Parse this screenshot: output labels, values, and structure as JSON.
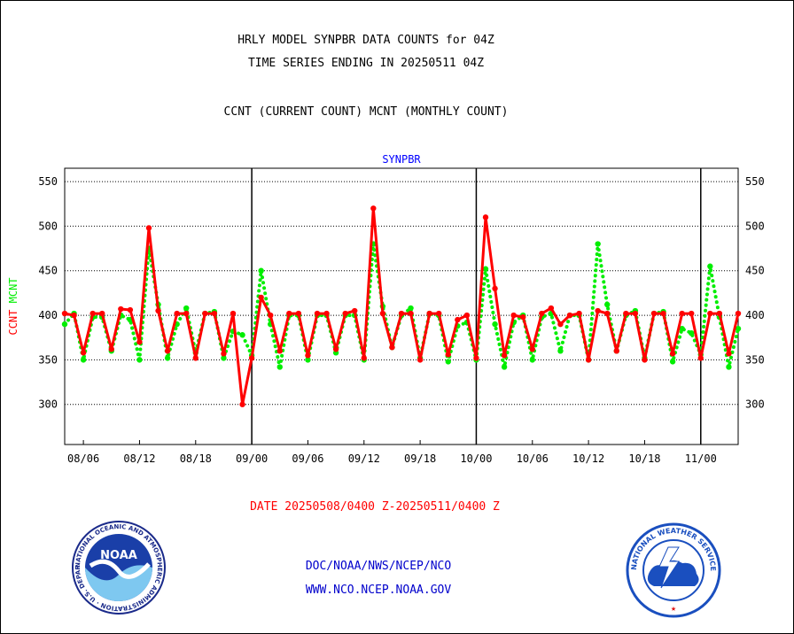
{
  "header": {
    "title_line1": "HRLY MODEL SYNPBR DATA COUNTS for 04Z",
    "title_line2": "TIME SERIES ENDING IN 20250511 04Z",
    "subtitle": "CCNT (CURRENT COUNT) MCNT (MONTHLY COUNT)"
  },
  "footer": {
    "date_range": "DATE 20250508/0400 Z-20250511/0400 Z",
    "org_path": "DOC/NOAA/NWS/NCEP/NCO",
    "website": "WWW.NCO.NCEP.NOAA.GOV"
  },
  "logos": {
    "noaa_text": "NOAA",
    "noaa_ring": "NATIONAL OCEANIC AND ATMOSPHERIC ADMINISTRATION · U.S. DEPARTMENT OF COMMERCE",
    "nws_ring": "NATIONAL WEATHER SERVICE"
  },
  "colors": {
    "ccnt": "#ff0000",
    "mcnt": "#00ee00",
    "plot_title": "#0000ff",
    "date_text": "#ff0000",
    "footer_text": "#0000cc"
  },
  "chart_data": {
    "type": "line",
    "title": "SYNPBR",
    "ylabel_parts": [
      {
        "text": "CCNT",
        "series": "CCNT"
      },
      {
        "text": "MCNT",
        "series": "MCNT"
      }
    ],
    "ylim": [
      255,
      565
    ],
    "yticks": [
      300,
      350,
      400,
      450,
      500,
      550
    ],
    "grid": "horizontal dotted",
    "xlim": [
      0,
      72
    ],
    "x_tick_labels": [
      {
        "x": 2,
        "label": "08/06"
      },
      {
        "x": 8,
        "label": "08/12"
      },
      {
        "x": 14,
        "label": "08/18"
      },
      {
        "x": 20,
        "label": "09/00"
      },
      {
        "x": 26,
        "label": "09/06"
      },
      {
        "x": 32,
        "label": "09/12"
      },
      {
        "x": 38,
        "label": "09/18"
      },
      {
        "x": 44,
        "label": "10/00"
      },
      {
        "x": 50,
        "label": "10/06"
      },
      {
        "x": 56,
        "label": "10/12"
      },
      {
        "x": 62,
        "label": "10/18"
      },
      {
        "x": 68,
        "label": "11/00"
      }
    ],
    "day_boundaries": [
      20,
      44,
      68
    ],
    "series": [
      {
        "name": "CCNT",
        "style": "solid",
        "x": [
          0,
          1,
          2,
          3,
          4,
          5,
          6,
          7,
          8,
          9,
          10,
          11,
          12,
          13,
          14,
          15,
          16,
          17,
          18,
          19,
          20,
          21,
          22,
          23,
          24,
          25,
          26,
          27,
          28,
          29,
          30,
          31,
          32,
          33,
          34,
          35,
          36,
          37,
          38,
          39,
          40,
          41,
          42,
          43,
          44,
          45,
          46,
          47,
          48,
          49,
          50,
          51,
          52,
          53,
          54,
          55,
          56,
          57,
          58,
          59,
          60,
          61,
          62,
          63,
          64,
          65,
          66,
          67,
          68,
          69,
          70,
          71,
          72
        ],
        "values": [
          402,
          400,
          358,
          402,
          402,
          362,
          407,
          406,
          370,
          498,
          405,
          360,
          402,
          402,
          352,
          402,
          402,
          357,
          402,
          300,
          352,
          420,
          400,
          360,
          402,
          402,
          355,
          402,
          402,
          362,
          402,
          405,
          352,
          520,
          402,
          364,
          402,
          402,
          350,
          402,
          402,
          356,
          395,
          400,
          352,
          510,
          430,
          355,
          400,
          398,
          362,
          402,
          408,
          390,
          400,
          402,
          350,
          405,
          402,
          360,
          402,
          402,
          350,
          402,
          402,
          357,
          402,
          402,
          352,
          402,
          402,
          357,
          402
        ]
      },
      {
        "name": "MCNT",
        "style": "dotted",
        "x": [
          0,
          1,
          2,
          3,
          4,
          5,
          6,
          7,
          8,
          9,
          10,
          11,
          12,
          13,
          14,
          15,
          16,
          17,
          18,
          19,
          20,
          21,
          22,
          23,
          24,
          25,
          26,
          27,
          28,
          29,
          30,
          31,
          32,
          33,
          34,
          35,
          36,
          37,
          38,
          39,
          40,
          41,
          42,
          43,
          44,
          45,
          46,
          47,
          48,
          49,
          50,
          51,
          52,
          53,
          54,
          55,
          56,
          57,
          58,
          59,
          60,
          61,
          62,
          63,
          64,
          65,
          66,
          67,
          68,
          69,
          70,
          71,
          72
        ],
        "values": [
          390,
          402,
          350,
          398,
          398,
          360,
          400,
          395,
          350,
          475,
          412,
          352,
          390,
          408,
          358,
          402,
          404,
          352,
          382,
          378,
          355,
          450,
          390,
          342,
          400,
          400,
          350,
          400,
          400,
          358,
          400,
          400,
          350,
          480,
          410,
          364,
          400,
          408,
          352,
          402,
          400,
          348,
          388,
          392,
          350,
          452,
          390,
          342,
          392,
          400,
          350,
          398,
          402,
          360,
          400,
          400,
          350,
          480,
          412,
          360,
          400,
          405,
          352,
          402,
          404,
          348,
          385,
          380,
          356,
          455,
          398,
          342,
          385
        ]
      }
    ]
  }
}
